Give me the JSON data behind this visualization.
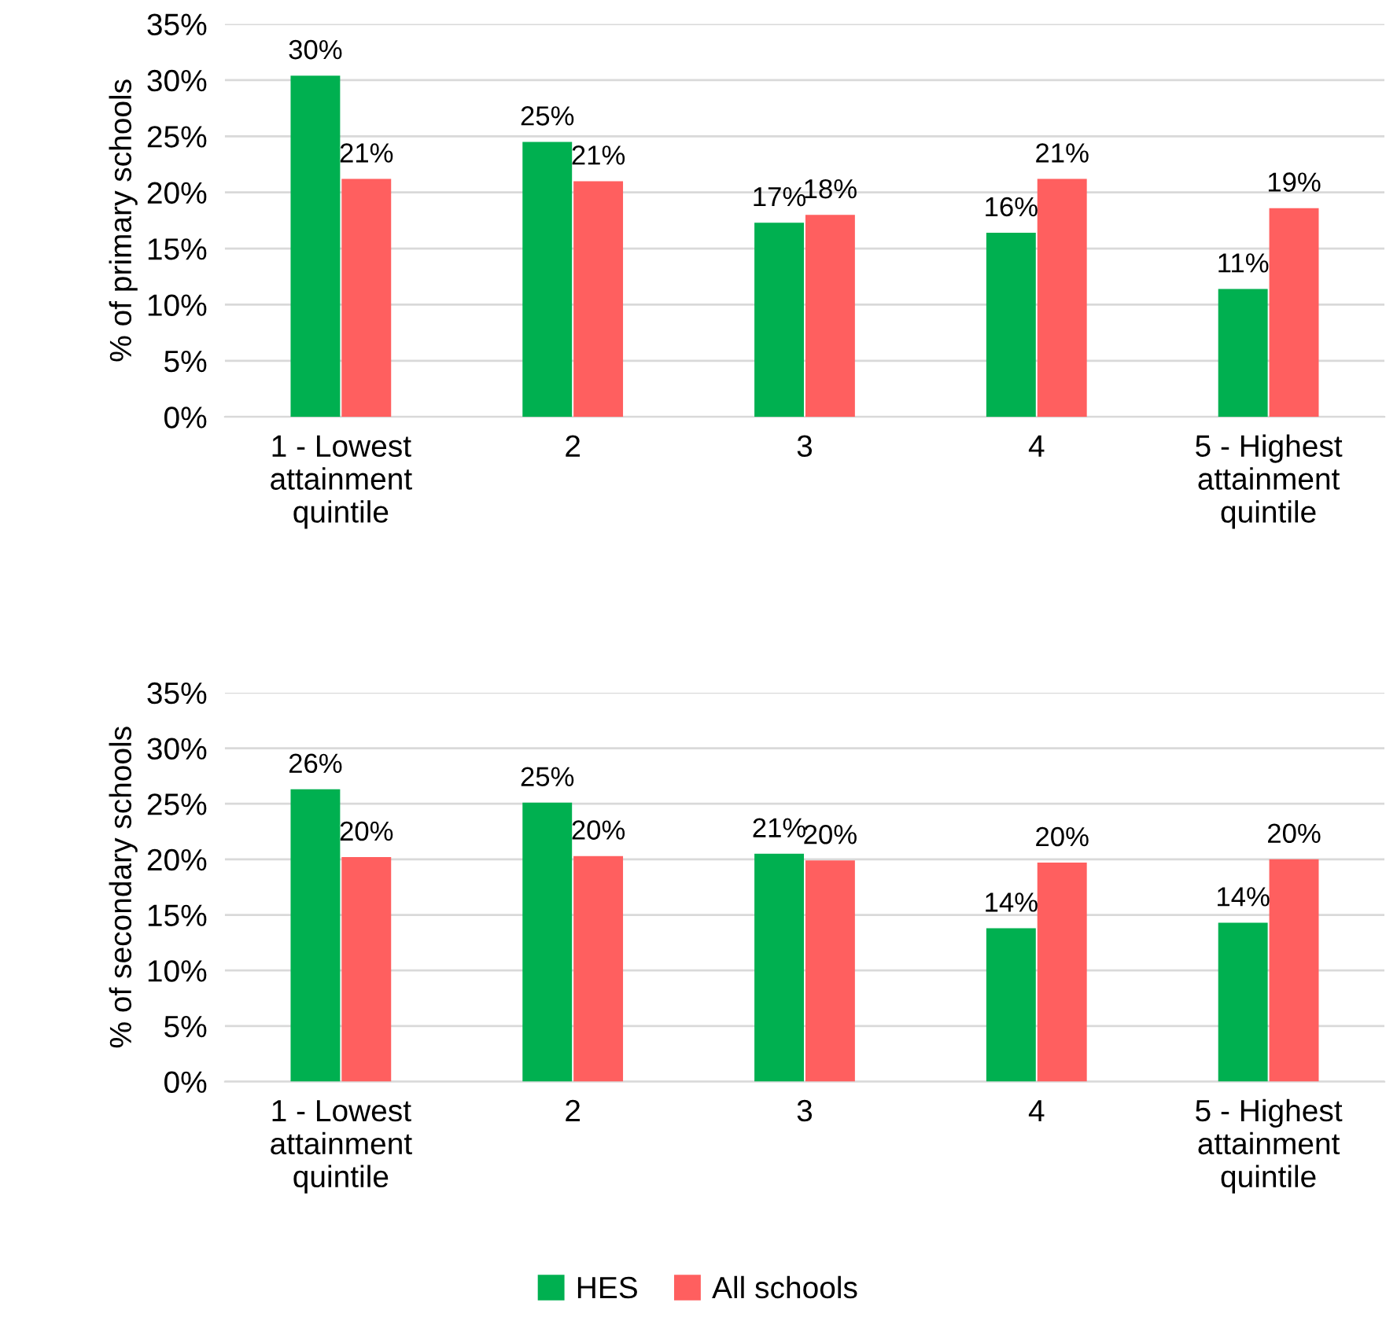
{
  "chart_data": [
    {
      "type": "bar",
      "ylabel": "% of primary schools",
      "categories": [
        "1 - Lowest\nattainment\nquintile",
        "2",
        "3",
        "4",
        "5 - Highest\nattainment\nquintile"
      ],
      "series": [
        {
          "color": "#00b050",
          "values": [
            30.4,
            24.5,
            17.3,
            16.4,
            11.4
          ],
          "value_labels": [
            "30%",
            "25%",
            "17%",
            "16%",
            "11%"
          ]
        },
        {
          "color": "#ff5f5f",
          "values": [
            21.2,
            21.0,
            18.0,
            21.2,
            18.6
          ],
          "value_labels": [
            "21%",
            "21%",
            "18%",
            "21%",
            "19%"
          ]
        }
      ],
      "ylim": [
        0,
        35
      ],
      "yticks": [
        {
          "value": 0,
          "label": "0%"
        },
        {
          "value": 5,
          "label": "5%"
        },
        {
          "value": 10,
          "label": "10%"
        },
        {
          "value": 15,
          "label": "15%"
        },
        {
          "value": 20,
          "label": "20%"
        },
        {
          "value": 25,
          "label": "25%"
        },
        {
          "value": 30,
          "label": "30%"
        },
        {
          "value": 35,
          "label": "35%"
        }
      ],
      "grid": "y"
    },
    {
      "type": "bar",
      "ylabel": "% of secondary schools",
      "categories": [
        "1 - Lowest\nattainment\nquintile",
        "2",
        "3",
        "4",
        "5 - Highest\nattainment\nquintile"
      ],
      "series": [
        {
          "name": "HES",
          "color": "#00b050",
          "values": [
            26.3,
            25.1,
            20.5,
            13.8,
            14.3
          ],
          "value_labels": [
            "26%",
            "25%",
            "21%",
            "14%",
            "14%"
          ]
        },
        {
          "name": "All schools",
          "color": "#ff5f5f",
          "values": [
            20.2,
            20.3,
            19.9,
            19.7,
            20.0
          ],
          "value_labels": [
            "20%",
            "20%",
            "20%",
            "20%",
            "20%"
          ]
        }
      ],
      "ylim": [
        0,
        35
      ],
      "yticks": [
        {
          "value": 0,
          "label": "0%"
        },
        {
          "value": 5,
          "label": "5%"
        },
        {
          "value": 10,
          "label": "10%"
        },
        {
          "value": 15,
          "label": "15%"
        },
        {
          "value": 20,
          "label": "20%"
        },
        {
          "value": 25,
          "label": "25%"
        },
        {
          "value": 30,
          "label": "30%"
        },
        {
          "value": 35,
          "label": "35%"
        }
      ],
      "grid": "y",
      "legend": "bottom"
    }
  ]
}
